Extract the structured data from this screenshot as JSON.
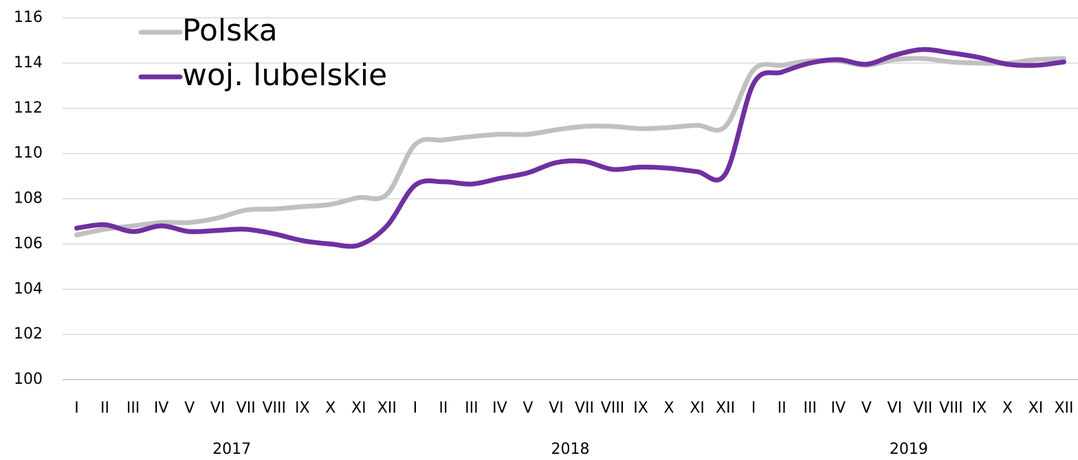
{
  "chart_data": {
    "type": "line",
    "categories": [
      "I",
      "II",
      "III",
      "IV",
      "V",
      "VI",
      "VII",
      "VIII",
      "IX",
      "X",
      "XI",
      "XII",
      "I",
      "II",
      "III",
      "IV",
      "V",
      "VI",
      "VII",
      "VIII",
      "IX",
      "X",
      "XI",
      "XII",
      "I",
      "II",
      "III",
      "IV",
      "V",
      "VI",
      "VII",
      "VIII",
      "IX",
      "X",
      "XI",
      "XII"
    ],
    "groups": [
      "2017",
      "2018",
      "2019"
    ],
    "series": [
      {
        "name": "Polska",
        "color": "#c0c0c0",
        "values": [
          106.4,
          106.65,
          106.8,
          106.95,
          106.95,
          107.15,
          107.5,
          107.55,
          107.65,
          107.75,
          108.05,
          108.2,
          110.4,
          110.6,
          110.75,
          110.85,
          110.85,
          111.05,
          111.2,
          111.2,
          111.1,
          111.15,
          111.25,
          111.2,
          113.7,
          113.9,
          114.1,
          114.1,
          113.9,
          114.15,
          114.2,
          114.05,
          114.0,
          114.0,
          114.15,
          114.2
        ]
      },
      {
        "name": "woj. lubelskie",
        "color": "#7030a0",
        "values": [
          106.7,
          106.85,
          106.55,
          106.8,
          106.55,
          106.6,
          106.65,
          106.45,
          106.15,
          106.0,
          105.95,
          106.8,
          108.6,
          108.75,
          108.65,
          108.9,
          109.15,
          109.6,
          109.65,
          109.3,
          109.4,
          109.35,
          109.2,
          109.1,
          113.1,
          113.6,
          114.0,
          114.15,
          113.95,
          114.35,
          114.6,
          114.45,
          114.25,
          113.95,
          113.9,
          114.05
        ]
      }
    ],
    "ylim": [
      100,
      116
    ],
    "yticks": [
      100,
      102,
      104,
      106,
      108,
      110,
      112,
      114,
      116
    ],
    "grid": true,
    "legend": "top-left"
  }
}
